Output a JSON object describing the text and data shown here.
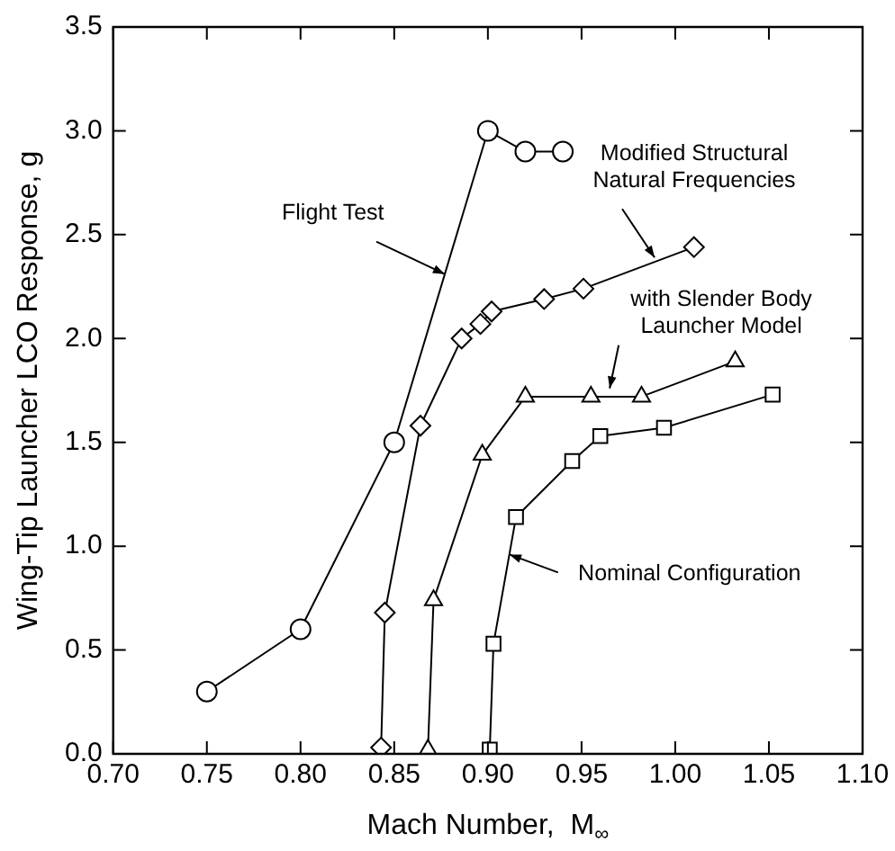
{
  "chart_data": {
    "type": "line",
    "xlabel": "Mach Number,  M$_{∞}$",
    "ylabel": "Wing-Tip Launcher LCO Response, g",
    "xlim": [
      0.7,
      1.1
    ],
    "xticks": [
      {
        "value": 0.7,
        "label": "0.70"
      },
      {
        "value": 0.75,
        "label": "0.75"
      },
      {
        "value": 0.8,
        "label": "0.80"
      },
      {
        "value": 0.85,
        "label": "0.85"
      },
      {
        "value": 0.9,
        "label": "0.90"
      },
      {
        "value": 0.95,
        "label": "0.95"
      },
      {
        "value": 1.0,
        "label": "1.00"
      },
      {
        "value": 1.05,
        "label": "1.05"
      },
      {
        "value": 1.1,
        "label": "1.10"
      }
    ],
    "ylim": [
      0,
      3.5
    ],
    "yticks": [
      {
        "value": 0,
        "label": "0.0"
      },
      {
        "value": 0.5,
        "label": "0.5"
      },
      {
        "value": 1,
        "label": "1.0"
      },
      {
        "value": 1.5,
        "label": "1.5"
      },
      {
        "value": 2,
        "label": "2.0"
      },
      {
        "value": 2.5,
        "label": "2.5"
      },
      {
        "value": 3,
        "label": "3.0"
      },
      {
        "value": 3.5,
        "label": "3.5"
      }
    ],
    "grid": false,
    "legend": false,
    "line_style": "solid",
    "series": [
      {
        "color": "#000000",
        "marker": "circle",
        "x": [
          0.75,
          0.8,
          0.85,
          0.9,
          0.92,
          0.94
        ],
        "values": [
          0.3,
          0.6,
          1.5,
          3.0,
          2.9,
          2.9
        ]
      },
      {
        "color": "#000000",
        "marker": "diamond",
        "x": [
          0.843,
          0.845,
          0.864,
          0.886,
          0.896,
          0.902,
          0.93,
          0.951,
          1.01
        ],
        "values": [
          0.03,
          0.68,
          1.58,
          2.0,
          2.07,
          2.13,
          2.19,
          2.24,
          2.44
        ]
      },
      {
        "color": "#000000",
        "marker": "triangle",
        "x": [
          0.868,
          0.871,
          0.897,
          0.92,
          0.955,
          0.982,
          1.032
        ],
        "values": [
          0.02,
          0.74,
          1.44,
          1.72,
          1.72,
          1.72,
          1.89
        ]
      },
      {
        "color": "#000000",
        "marker": "square",
        "x": [
          0.901,
          0.903,
          0.915,
          0.945,
          0.96,
          0.994,
          1.052
        ],
        "values": [
          0.02,
          0.53,
          1.14,
          1.41,
          1.53,
          1.57,
          1.73
        ]
      }
    ],
    "annotations": [
      {
        "text": "Flight Test",
        "x": 0.877,
        "y": 2.31
      },
      {
        "text": "Modified Structural\nNatural Frequencies",
        "x": 0.989,
        "y": 2.39
      },
      {
        "text": "with Slender Body\nLauncher Model",
        "x": 0.965,
        "y": 1.76
      },
      {
        "text": "Nominal Configuration",
        "x": 0.9115,
        "y": 0.96
      }
    ]
  }
}
